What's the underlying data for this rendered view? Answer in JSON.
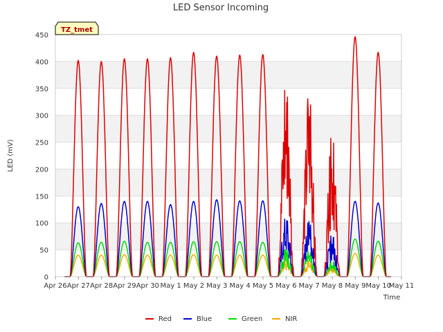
{
  "chart_data": {
    "type": "line",
    "title": "LED Sensor Incoming",
    "xlabel": "Time",
    "ylabel": "LED (mV)",
    "ylim": [
      0,
      450
    ],
    "yticks": [
      0,
      50,
      100,
      150,
      200,
      250,
      300,
      350,
      400,
      450
    ],
    "xlim": [
      0,
      15
    ],
    "xtick_labels": [
      "Apr 26",
      "Apr 27",
      "Apr 28",
      "Apr 29",
      "Apr 30",
      "May 1",
      "May 2",
      "May 3",
      "May 4",
      "May 5",
      "May 6",
      "May 7",
      "May 8",
      "May 9",
      "May 10",
      "May 11"
    ],
    "site_badge": "TZ_tmet",
    "grid": true,
    "legend_position": "bottom-center",
    "day_peaks": {
      "days": [
        "Apr 27",
        "Apr 28",
        "Apr 29",
        "Apr 30",
        "May 1",
        "May 2",
        "May 3",
        "May 4",
        "May 5",
        "May 6",
        "May 7",
        "May 8",
        "May 9",
        "May 10"
      ],
      "Red": [
        402,
        400,
        405,
        405,
        407,
        417,
        410,
        412,
        413,
        362,
        346,
        269,
        446,
        417
      ],
      "Blue": [
        130,
        136,
        140,
        140,
        134,
        140,
        143,
        141,
        141,
        112,
        104,
        79,
        140,
        137
      ],
      "Green": [
        63,
        64,
        66,
        64,
        64,
        65,
        65,
        65,
        64,
        52,
        48,
        30,
        70,
        66
      ],
      "NIR": [
        40,
        40,
        41,
        40,
        40,
        41,
        40,
        40,
        40,
        33,
        30,
        20,
        43,
        40
      ]
    },
    "series": [
      {
        "name": "Red",
        "color": "#dd0000"
      },
      {
        "name": "Blue",
        "color": "#0000cc"
      },
      {
        "name": "Green",
        "color": "#00dd00"
      },
      {
        "name": "NIR",
        "color": "#ffaa00"
      }
    ]
  }
}
